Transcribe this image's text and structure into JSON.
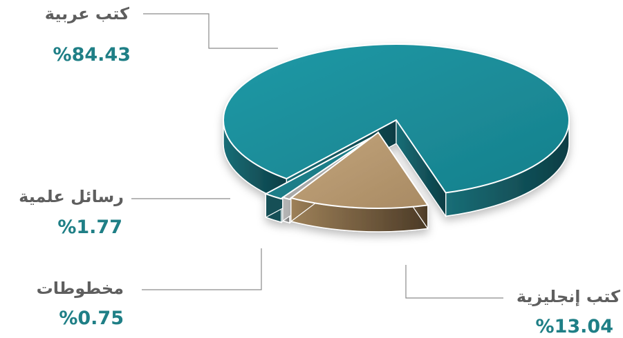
{
  "chart_data": {
    "type": "pie",
    "slices": [
      {
        "label": "كتب عربية",
        "value": 84.43,
        "display": "%84.43",
        "color": "#1c8794"
      },
      {
        "label": "كتب إنجليزية",
        "value": 13.04,
        "display": "%13.04",
        "color": "#b2936b"
      },
      {
        "label": "مخطوطات",
        "value": 0.75,
        "display": "%0.75",
        "color": "#9a9a9a"
      },
      {
        "label": "رسائل علمية",
        "value": 1.77,
        "display": "%1.77",
        "color": "#1a6f78"
      }
    ],
    "legend": "none",
    "style": "3d-exploded"
  }
}
